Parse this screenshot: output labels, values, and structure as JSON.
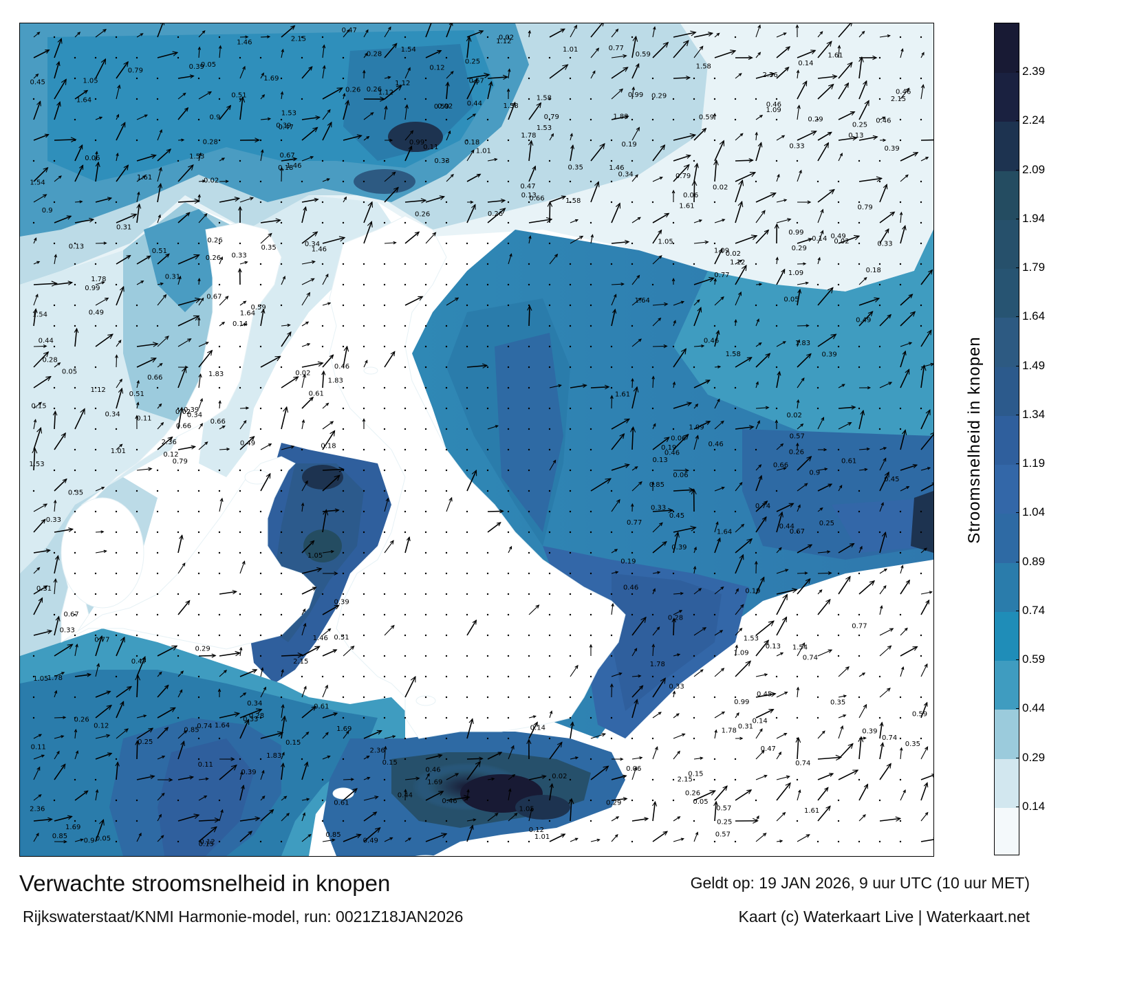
{
  "title": "Verwachte stroomsnelheid in knopen",
  "valid_time": "Geldt op: 19 JAN 2026, 9 uur UTC (10 uur MET)",
  "model_run": "Rijkswaterstaat/KNMI Harmonie-model, run: 0021Z18JAN2026",
  "credit": "Kaart (c) Waterkaart Live | Waterkaart.net",
  "colorbar": {
    "label": "Stroomsnelheid in knopen",
    "ticks": [
      "0.14",
      "0.29",
      "0.44",
      "0.59",
      "0.74",
      "0.89",
      "1.04",
      "1.19",
      "1.34",
      "1.49",
      "1.64",
      "1.79",
      "1.94",
      "2.09",
      "2.24",
      "2.39"
    ],
    "colors": [
      "#f4f9fb",
      "#d2e7ef",
      "#9bcbdc",
      "#3f9cc0",
      "#1f8db8",
      "#2a7cab",
      "#2e6aa4",
      "#3367a8",
      "#2f5f9d",
      "#2c5a8c",
      "#2d5a82",
      "#275472",
      "#26506b",
      "#244c61",
      "#1d3350",
      "#1a2140",
      "#181a34"
    ]
  },
  "map": {
    "grid": "dots",
    "sample_labels": [
      "0.28",
      "0.29",
      "0.33",
      "0.35",
      "0.34",
      "0.46",
      "0.49",
      "0.39",
      "0.06",
      "0.26",
      "0.25",
      "0.14",
      "0.12",
      "0.13",
      "0.15",
      "0.02",
      "0.02",
      "0.77",
      "1.46",
      "1.64",
      "1.78",
      "1.58",
      "1.53",
      "1.61",
      "1.83",
      "0.05",
      "0.47",
      "0.46",
      "0.74",
      "0.59",
      "0.66",
      "0.79",
      "1.09",
      "1.12",
      "1.05",
      "0.99",
      "2.36",
      "2.15",
      "1.69",
      "1.54",
      "0.19",
      "0.18",
      "0.31",
      "0.26",
      "0.11",
      "0.85",
      "0.9",
      "1.01",
      "0.33",
      "0.39",
      "0.44",
      "0.51",
      "0.45",
      "0.57",
      "0.61",
      "0.67"
    ],
    "land_color": "#ffffff",
    "vector_color": "#000000"
  }
}
